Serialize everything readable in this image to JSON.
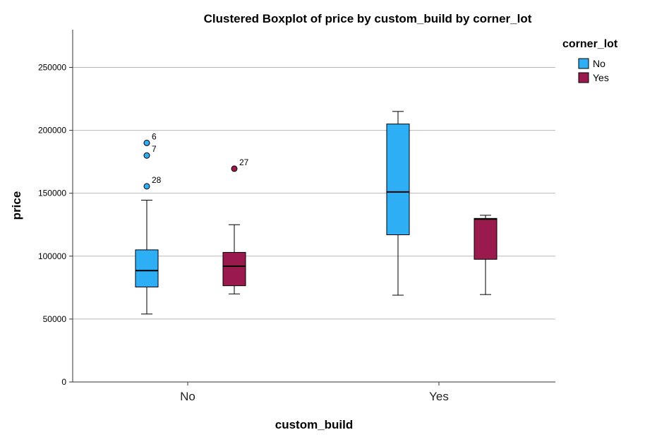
{
  "chart_data": {
    "type": "boxplot",
    "title": "Clustered Boxplot of price by custom_build by corner_lot",
    "xlabel": "custom_build",
    "ylabel": "price",
    "ylim": [
      0,
      280000
    ],
    "yticks": [
      0,
      50000,
      100000,
      150000,
      200000,
      250000
    ],
    "ytick_labels": [
      "0",
      "50000",
      "100000",
      "150000",
      "200000",
      "250000"
    ],
    "categories": [
      "No",
      "Yes"
    ],
    "grid": "horizontal",
    "legend": {
      "title": "corner_lot",
      "placement": "right-top"
    },
    "series": [
      {
        "name": "No",
        "color": "#2eaef5",
        "boxes": [
          {
            "category": "No",
            "whisker_low": 54000,
            "q1": 75500,
            "median": 88500,
            "q3": 105000,
            "whisker_high": 144500,
            "outliers": [
              {
                "value": 190000,
                "label": "6"
              },
              {
                "value": 180000,
                "label": "7"
              },
              {
                "value": 155500,
                "label": "28"
              }
            ]
          },
          {
            "category": "Yes",
            "whisker_low": 69000,
            "q1": 117000,
            "median": 151000,
            "q3": 205000,
            "whisker_high": 215000,
            "outliers": []
          }
        ]
      },
      {
        "name": "Yes",
        "color": "#9a1a4d",
        "boxes": [
          {
            "category": "No",
            "whisker_low": 70000,
            "q1": 76500,
            "median": 92000,
            "q3": 103000,
            "whisker_high": 125000,
            "outliers": [
              {
                "value": 169500,
                "label": "27"
              }
            ]
          },
          {
            "category": "Yes",
            "whisker_low": 69500,
            "q1": 97500,
            "median": 129500,
            "q3": 130000,
            "whisker_high": 132500,
            "outliers": []
          }
        ]
      }
    ]
  }
}
